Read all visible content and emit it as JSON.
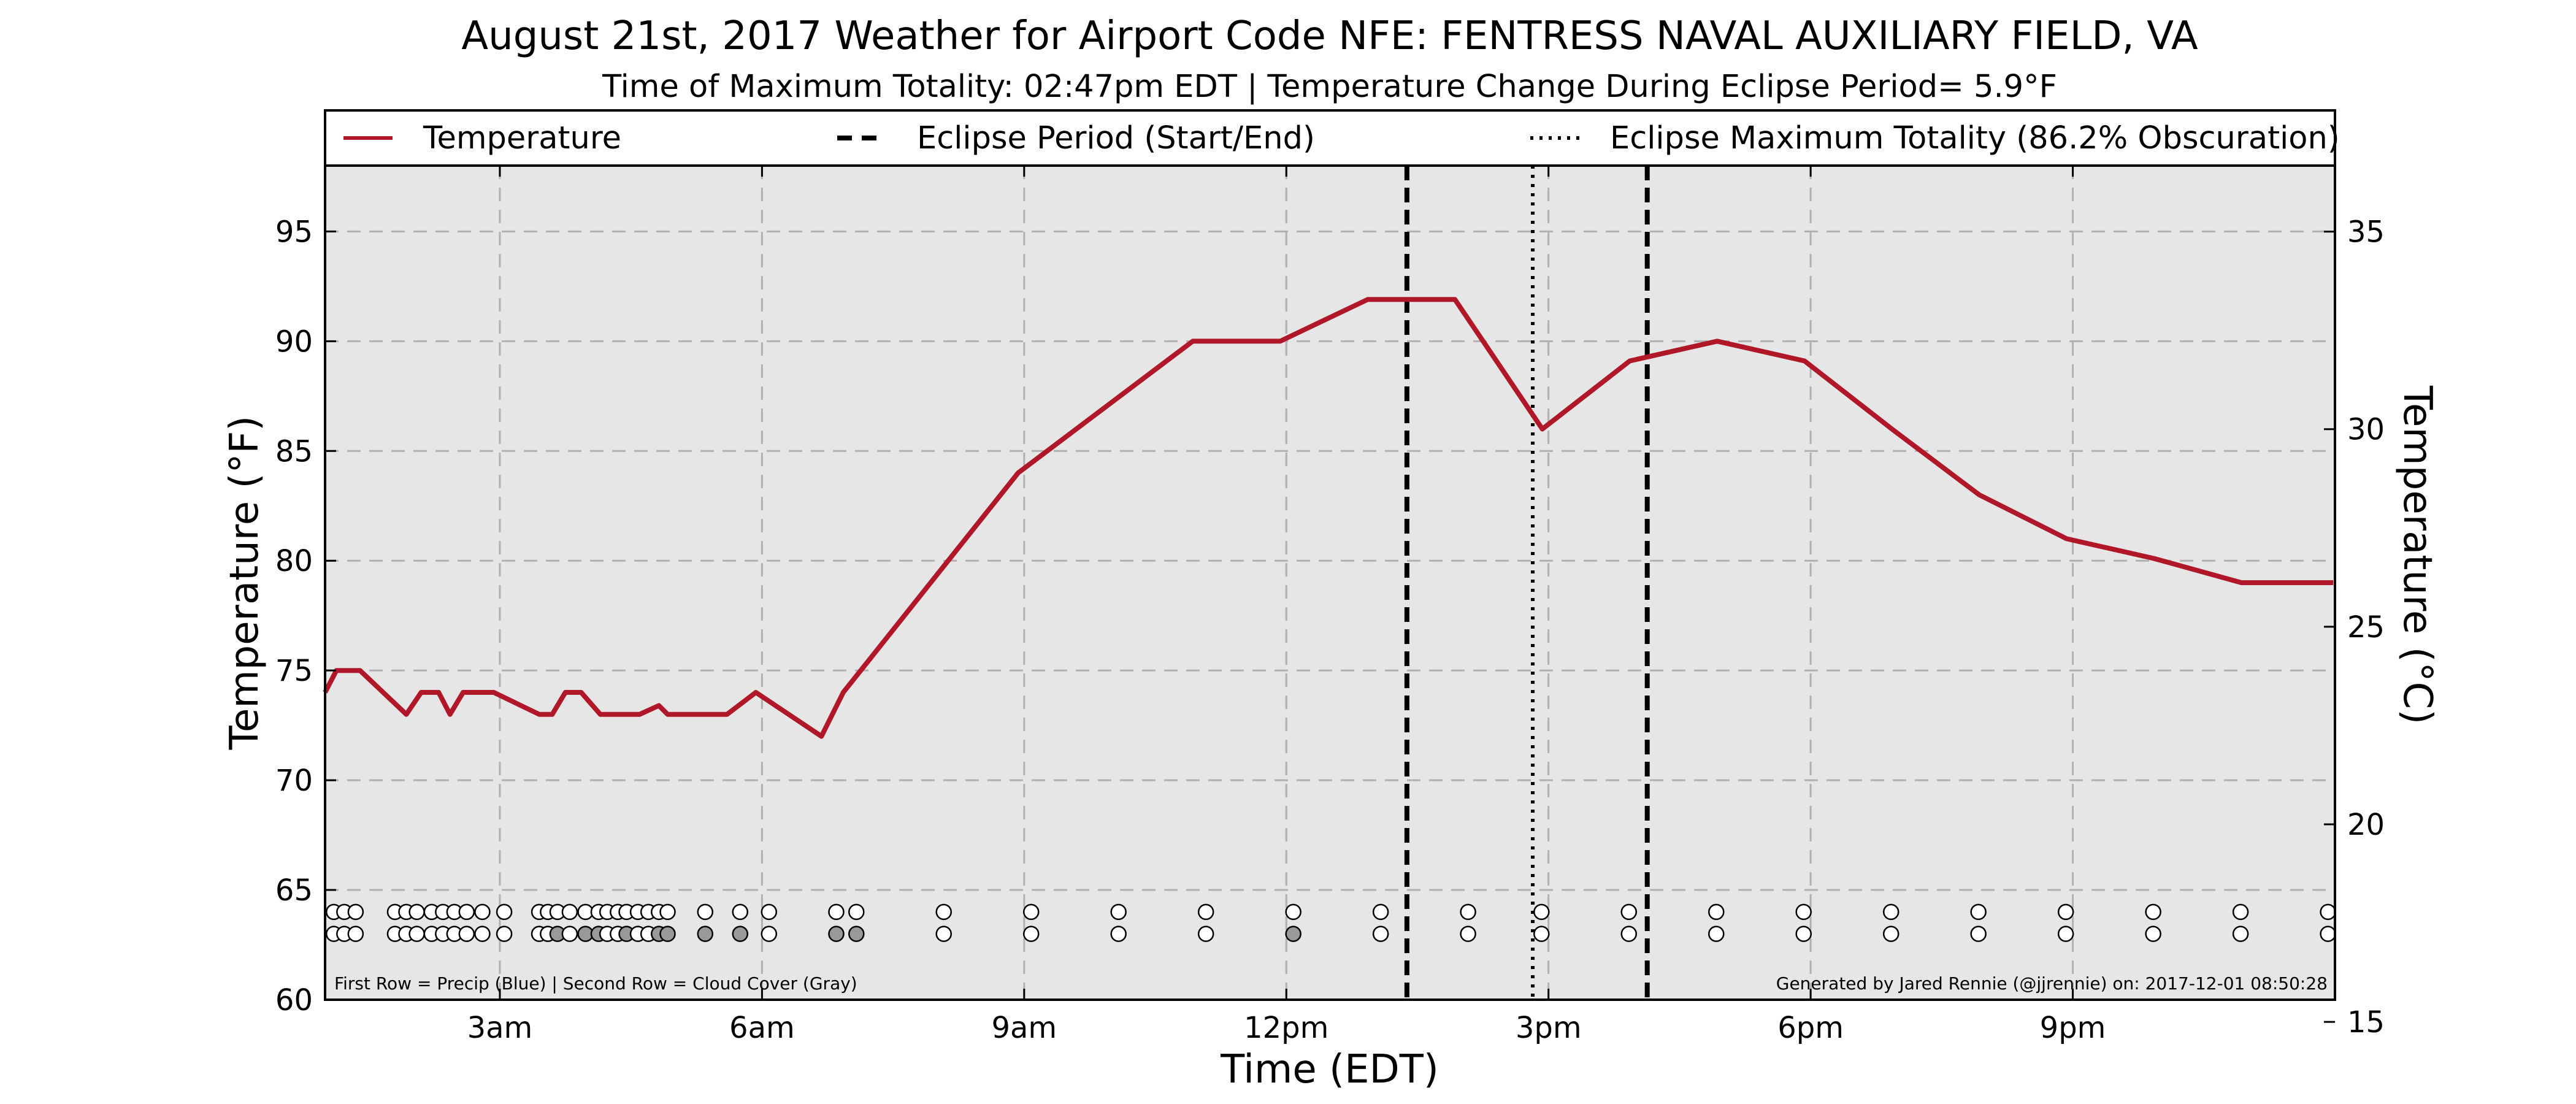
{
  "chart_data": {
    "type": "line",
    "title": "August 21st, 2017 Weather for Airport Code NFE: FENTRESS NAVAL AUXILIARY FIELD, VA",
    "subtitle": "Time of Maximum Totality: 02:47pm EDT | Temperature Change During Eclipse Period= 5.9°F",
    "xlabel": "Time (EDT)",
    "ylabel": "Temperature (°F)",
    "ylabel_right": "Temperature (°C)",
    "xlim": [
      1.0,
      24.0
    ],
    "ylim": [
      60,
      98
    ],
    "ylim_right": [
      15.56,
      36.67
    ],
    "x_ticks": [
      {
        "x": 3,
        "label": "3am"
      },
      {
        "x": 6,
        "label": "6am"
      },
      {
        "x": 9,
        "label": "9am"
      },
      {
        "x": 12,
        "label": "12pm"
      },
      {
        "x": 15,
        "label": "3pm"
      },
      {
        "x": 18,
        "label": "6pm"
      },
      {
        "x": 21,
        "label": "9pm"
      }
    ],
    "y_ticks": [
      60,
      65,
      70,
      75,
      80,
      85,
      90,
      95
    ],
    "y_ticks_right": [
      15,
      20,
      25,
      30,
      35
    ],
    "grid": true,
    "legend_placement": "top",
    "legend": [
      {
        "label": "Temperature",
        "style": "solid"
      },
      {
        "label": "Eclipse Period (Start/End)",
        "style": "dashed"
      },
      {
        "label": "Eclipse Maximum Totality (86.2% Obscuration)",
        "style": "dotted"
      }
    ],
    "series": [
      {
        "name": "Temperature",
        "color": "#b0182a",
        "x": [
          1.0,
          1.13,
          1.4,
          1.93,
          2.1,
          2.3,
          2.43,
          2.58,
          2.93,
          3.45,
          3.6,
          3.75,
          3.93,
          4.15,
          4.6,
          4.82,
          4.92,
          5.6,
          5.93,
          6.68,
          6.93,
          8.93,
          9.93,
          10.93,
          11.93,
          12.93,
          13.93,
          14.93,
          15.93,
          16.93,
          17.93,
          18.93,
          19.93,
          20.93,
          21.93,
          22.93,
          23.98
        ],
        "values": [
          74,
          75,
          75,
          73,
          74,
          74,
          73,
          74,
          74,
          73,
          73,
          74,
          74,
          73,
          73,
          73.4,
          73,
          73,
          74,
          72,
          74,
          84,
          87,
          90,
          90,
          91.9,
          91.9,
          86,
          89.1,
          90,
          89.1,
          86,
          83,
          81,
          80.1,
          79,
          79
        ]
      }
    ],
    "eclipse_start_x": 13.38,
    "eclipse_end_x": 16.13,
    "eclipse_max_x": 14.82,
    "precip_row_y": 64,
    "cloud_row_y": 63,
    "obs_x": [
      1.1,
      1.22,
      1.35,
      1.8,
      1.93,
      2.05,
      2.22,
      2.35,
      2.48,
      2.62,
      2.8,
      3.05,
      3.45,
      3.55,
      3.66,
      3.8,
      3.98,
      4.13,
      4.23,
      4.35,
      4.45,
      4.58,
      4.7,
      4.82,
      4.92,
      5.35,
      5.75,
      6.08,
      6.85,
      7.08,
      8.08,
      9.08,
      10.08,
      11.08,
      12.08,
      13.08,
      14.08,
      14.92,
      15.92,
      16.92,
      17.92,
      18.92,
      19.92,
      20.92,
      21.92,
      22.92,
      23.92
    ],
    "cloud_gray_x": [
      3.66,
      3.98,
      4.13,
      4.45,
      4.82,
      4.92,
      5.35,
      5.75,
      6.85,
      7.08,
      12.08
    ],
    "footnote_left": "First Row = Precip (Blue) | Second Row = Cloud Cover (Gray)",
    "footnote_right": "Generated by Jared Rennie (@jjrennie) on: 2017-12-01 08:50:28",
    "colors": {
      "temperature_line": "#b0182a",
      "plot_background": "#e6e6e6",
      "grid": "#b0b0b0",
      "cloud_gray": "#999999",
      "marker_open": "#ffffff"
    }
  }
}
